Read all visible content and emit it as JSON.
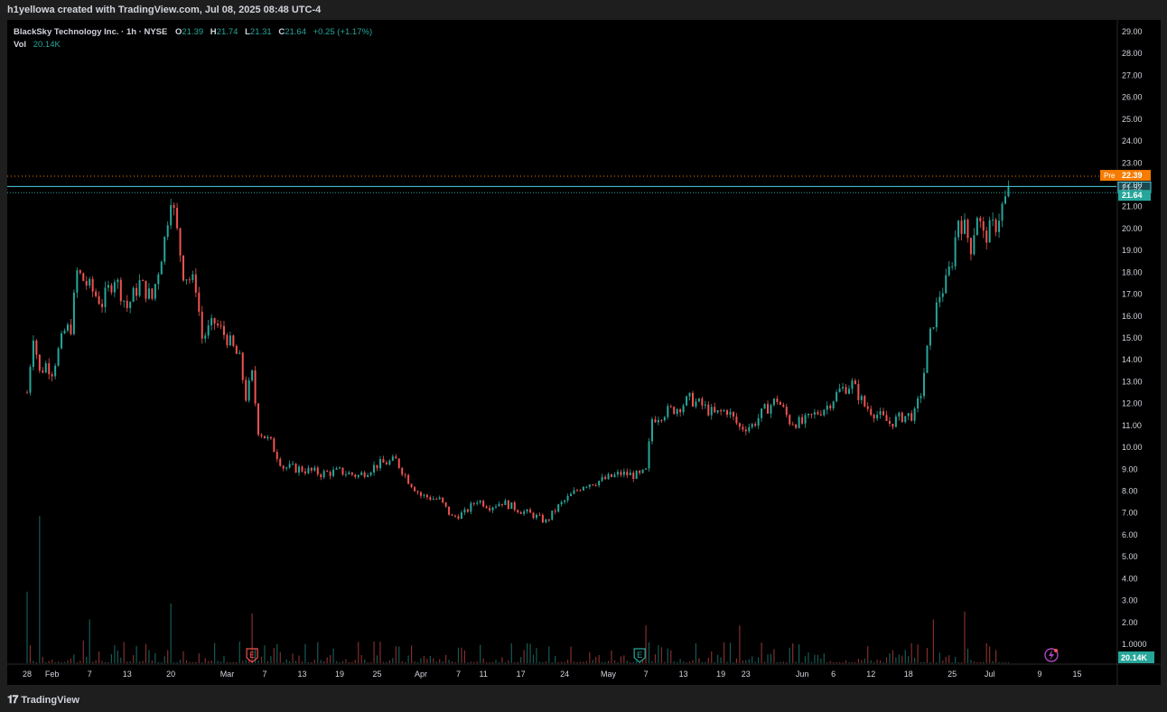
{
  "header": {
    "attribution": "h1yellowa created with TradingView.com, Jul 08, 2025 08:48 UTC-4"
  },
  "legend": {
    "symbol": "BlackSky Technology Inc. · 1h · NYSE",
    "o_label": "O",
    "o_value": "21.39",
    "h_label": "H",
    "h_value": "21.74",
    "l_label": "L",
    "l_value": "21.31",
    "c_label": "C",
    "c_value": "21.64",
    "change": "+0.25 (+1.17%)",
    "vol_label": "Vol",
    "vol_value": "20.14K"
  },
  "badges": {
    "pre_label": "Pre",
    "pre_value": "22.39",
    "line_value": "21.92",
    "last_value": "21.64",
    "vol_value": "20.14K"
  },
  "events": {
    "earnings_1": "E",
    "earnings_2": "E"
  },
  "footer": {
    "brand": "TradingView"
  },
  "colors": {
    "up": "#26a69a",
    "down": "#ef5350",
    "pre": "#f57c00",
    "grid_text": "#d1d4dc",
    "background": "#000000"
  },
  "chart_data": {
    "type": "candlestick",
    "interval": "1h",
    "y_ticks": [
      "29.00",
      "28.00",
      "27.00",
      "26.00",
      "25.00",
      "24.00",
      "23.00",
      "22.00",
      "21.00",
      "20.00",
      "19.00",
      "18.00",
      "17.00",
      "16.00",
      "15.00",
      "14.00",
      "13.00",
      "12.00",
      "11.00",
      "10.00",
      "9.00",
      "8.00",
      "7.00",
      "6.00",
      "5.00",
      "4.00",
      "3.00",
      "2.00",
      "1.0000"
    ],
    "ylim": [
      0,
      29
    ],
    "x_ticks": [
      {
        "label": "28",
        "day": 0
      },
      {
        "label": "Feb",
        "day": 4
      },
      {
        "label": "7",
        "day": 10
      },
      {
        "label": "13",
        "day": 16
      },
      {
        "label": "20",
        "day": 23
      },
      {
        "label": "Mar",
        "day": 32
      },
      {
        "label": "7",
        "day": 38
      },
      {
        "label": "13",
        "day": 44
      },
      {
        "label": "19",
        "day": 50
      },
      {
        "label": "25",
        "day": 56
      },
      {
        "label": "Apr",
        "day": 63
      },
      {
        "label": "7",
        "day": 69
      },
      {
        "label": "11",
        "day": 73
      },
      {
        "label": "17",
        "day": 79
      },
      {
        "label": "24",
        "day": 86
      },
      {
        "label": "May",
        "day": 93
      },
      {
        "label": "7",
        "day": 99
      },
      {
        "label": "13",
        "day": 105
      },
      {
        "label": "19",
        "day": 111
      },
      {
        "label": "23",
        "day": 115
      },
      {
        "label": "Jun",
        "day": 124
      },
      {
        "label": "6",
        "day": 129
      },
      {
        "label": "12",
        "day": 135
      },
      {
        "label": "18",
        "day": 141
      },
      {
        "label": "25",
        "day": 148
      },
      {
        "label": "Jul",
        "day": 154
      },
      {
        "label": "9",
        "day": 162
      },
      {
        "label": "15",
        "day": 168
      }
    ],
    "close_path": [
      {
        "day": 0,
        "price": 12.5
      },
      {
        "day": 1,
        "price": 15.2
      },
      {
        "day": 2,
        "price": 13.4
      },
      {
        "day": 3,
        "price": 13.8
      },
      {
        "day": 4,
        "price": 13.5
      },
      {
        "day": 6,
        "price": 15.3
      },
      {
        "day": 7,
        "price": 15.5
      },
      {
        "day": 8,
        "price": 18.0
      },
      {
        "day": 10,
        "price": 17.3
      },
      {
        "day": 12,
        "price": 16.6
      },
      {
        "day": 14,
        "price": 17.8
      },
      {
        "day": 16,
        "price": 16.4
      },
      {
        "day": 18,
        "price": 17.5
      },
      {
        "day": 20,
        "price": 16.8
      },
      {
        "day": 22,
        "price": 19.5
      },
      {
        "day": 23,
        "price": 21.6
      },
      {
        "day": 24,
        "price": 19.8
      },
      {
        "day": 25,
        "price": 18.0
      },
      {
        "day": 27,
        "price": 17.4
      },
      {
        "day": 28,
        "price": 15.0
      },
      {
        "day": 30,
        "price": 15.7
      },
      {
        "day": 32,
        "price": 15.0
      },
      {
        "day": 34,
        "price": 14.0
      },
      {
        "day": 35,
        "price": 12.3
      },
      {
        "day": 36,
        "price": 13.3
      },
      {
        "day": 37,
        "price": 10.8
      },
      {
        "day": 39,
        "price": 10.2
      },
      {
        "day": 41,
        "price": 9.1
      },
      {
        "day": 44,
        "price": 9.0
      },
      {
        "day": 47,
        "price": 8.8
      },
      {
        "day": 50,
        "price": 8.9
      },
      {
        "day": 53,
        "price": 8.7
      },
      {
        "day": 56,
        "price": 9.2
      },
      {
        "day": 59,
        "price": 9.4
      },
      {
        "day": 61,
        "price": 8.5
      },
      {
        "day": 63,
        "price": 7.8
      },
      {
        "day": 66,
        "price": 7.6
      },
      {
        "day": 68,
        "price": 6.8
      },
      {
        "day": 70,
        "price": 7.0
      },
      {
        "day": 72,
        "price": 7.6
      },
      {
        "day": 74,
        "price": 7.3
      },
      {
        "day": 76,
        "price": 7.5
      },
      {
        "day": 79,
        "price": 7.1
      },
      {
        "day": 81,
        "price": 6.9
      },
      {
        "day": 83,
        "price": 6.6
      },
      {
        "day": 85,
        "price": 7.3
      },
      {
        "day": 87,
        "price": 7.8
      },
      {
        "day": 89,
        "price": 8.3
      },
      {
        "day": 92,
        "price": 8.5
      },
      {
        "day": 95,
        "price": 8.8
      },
      {
        "day": 98,
        "price": 8.7
      },
      {
        "day": 99,
        "price": 8.9
      },
      {
        "day": 100,
        "price": 11.3
      },
      {
        "day": 102,
        "price": 11.6
      },
      {
        "day": 104,
        "price": 11.8
      },
      {
        "day": 106,
        "price": 12.2
      },
      {
        "day": 108,
        "price": 11.9
      },
      {
        "day": 110,
        "price": 11.5
      },
      {
        "day": 112,
        "price": 11.7
      },
      {
        "day": 114,
        "price": 10.9
      },
      {
        "day": 116,
        "price": 11.0
      },
      {
        "day": 118,
        "price": 11.7
      },
      {
        "day": 120,
        "price": 12.2
      },
      {
        "day": 122,
        "price": 11.2
      },
      {
        "day": 124,
        "price": 11.1
      },
      {
        "day": 126,
        "price": 11.5
      },
      {
        "day": 128,
        "price": 11.9
      },
      {
        "day": 130,
        "price": 12.6
      },
      {
        "day": 132,
        "price": 12.9
      },
      {
        "day": 134,
        "price": 11.9
      },
      {
        "day": 136,
        "price": 11.5
      },
      {
        "day": 138,
        "price": 11.1
      },
      {
        "day": 140,
        "price": 11.4
      },
      {
        "day": 142,
        "price": 11.5
      },
      {
        "day": 143,
        "price": 12.5
      },
      {
        "day": 144,
        "price": 14.4
      },
      {
        "day": 145,
        "price": 15.8
      },
      {
        "day": 146,
        "price": 17.0
      },
      {
        "day": 147,
        "price": 17.5
      },
      {
        "day": 148,
        "price": 18.6
      },
      {
        "day": 149,
        "price": 20.5
      },
      {
        "day": 150,
        "price": 20.0
      },
      {
        "day": 151,
        "price": 19.2
      },
      {
        "day": 152,
        "price": 20.7
      },
      {
        "day": 153,
        "price": 19.6
      },
      {
        "day": 155,
        "price": 20.2
      },
      {
        "day": 156,
        "price": 21.0
      },
      {
        "day": 157,
        "price": 21.6
      }
    ],
    "reference_lines": {
      "pre": 22.39,
      "horizontal": 21.92,
      "last": 21.64
    },
    "earnings_markers": [
      {
        "day": 36
      },
      {
        "day": 98
      }
    ],
    "volume_spikes": [
      {
        "day": 0,
        "value": 3.6
      },
      {
        "day": 2,
        "value": 7.4
      },
      {
        "day": 10,
        "value": 2.2
      },
      {
        "day": 23,
        "value": 3.0
      },
      {
        "day": 36,
        "value": 2.5
      },
      {
        "day": 99,
        "value": 1.9
      },
      {
        "day": 114,
        "value": 1.9
      },
      {
        "day": 145,
        "value": 2.2
      },
      {
        "day": 150,
        "value": 2.6
      }
    ]
  }
}
